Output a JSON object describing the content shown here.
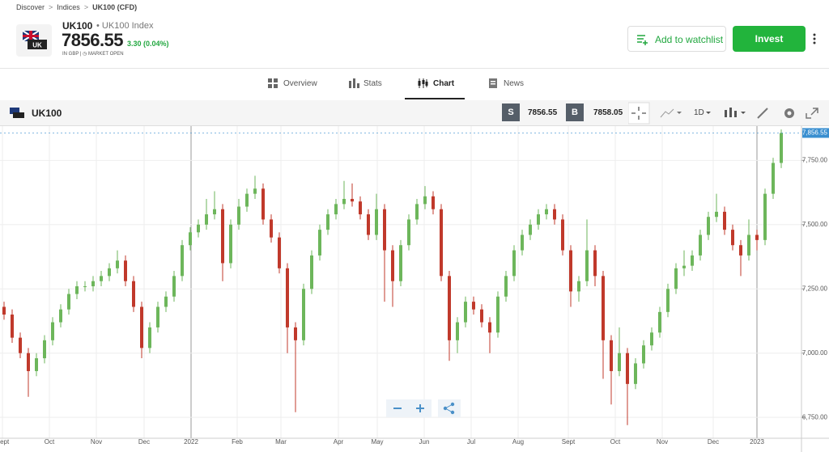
{
  "breadcrumb": [
    "Discover",
    "Indices",
    "UK100 (CFD)"
  ],
  "instrument": {
    "symbol": "UK100",
    "name": "UK100 Index",
    "badge": "UK",
    "price": "7856.55",
    "change": "3.30 (0.04%)",
    "currency": "IN GBP",
    "status": "MARKET OPEN"
  },
  "actions": {
    "watchlist": "Add to watchlist",
    "invest": "Invest"
  },
  "tabs": [
    "Overview",
    "Stats",
    "Chart",
    "News"
  ],
  "toolbar": {
    "symbol": "UK100",
    "sell_label": "S",
    "sell": "7856.55",
    "buy_label": "B",
    "buy": "7858.05",
    "interval": "1D"
  },
  "chart_data": {
    "type": "candlestick",
    "up_color": "#6db65b",
    "down_color": "#c0392b",
    "series": [
      {
        "values": [
          [
            7180,
            7200,
            7130,
            7150
          ],
          [
            7150,
            7170,
            7040,
            7060
          ],
          [
            7060,
            7080,
            6980,
            7000
          ],
          [
            7000,
            7020,
            6830,
            6930
          ],
          [
            6930,
            7000,
            6910,
            6980
          ],
          [
            6980,
            7070,
            6960,
            7050
          ],
          [
            7050,
            7140,
            7030,
            7120
          ],
          [
            7120,
            7190,
            7100,
            7170
          ],
          [
            7170,
            7250,
            7150,
            7230
          ],
          [
            7230,
            7280,
            7210,
            7260
          ],
          [
            7260,
            7280,
            7240,
            7260
          ],
          [
            7260,
            7300,
            7240,
            7280
          ],
          [
            7280,
            7320,
            7260,
            7300
          ],
          [
            7300,
            7350,
            7280,
            7330
          ],
          [
            7330,
            7400,
            7310,
            7360
          ],
          [
            7360,
            7380,
            7260,
            7280
          ],
          [
            7280,
            7300,
            7160,
            7180
          ],
          [
            7180,
            7200,
            6980,
            7020
          ],
          [
            7020,
            7120,
            7000,
            7100
          ],
          [
            7100,
            7200,
            7080,
            7180
          ],
          [
            7180,
            7240,
            7160,
            7220
          ],
          [
            7220,
            7320,
            7200,
            7300
          ],
          [
            7300,
            7440,
            7280,
            7420
          ],
          [
            7420,
            7490,
            7400,
            7470
          ],
          [
            7470,
            7520,
            7450,
            7500
          ],
          [
            7500,
            7600,
            7480,
            7540
          ],
          [
            7540,
            7630,
            7520,
            7560
          ],
          [
            7560,
            7580,
            7280,
            7350
          ],
          [
            7350,
            7520,
            7330,
            7500
          ],
          [
            7500,
            7600,
            7480,
            7570
          ],
          [
            7570,
            7640,
            7550,
            7620
          ],
          [
            7620,
            7690,
            7600,
            7640
          ],
          [
            7640,
            7660,
            7500,
            7520
          ],
          [
            7520,
            7540,
            7430,
            7450
          ],
          [
            7450,
            7470,
            7310,
            7330
          ],
          [
            7330,
            7350,
            7000,
            7100
          ],
          [
            7100,
            7120,
            6770,
            7050
          ],
          [
            7050,
            7270,
            7030,
            7250
          ],
          [
            7250,
            7400,
            7230,
            7380
          ],
          [
            7380,
            7500,
            7360,
            7480
          ],
          [
            7480,
            7560,
            7460,
            7540
          ],
          [
            7540,
            7600,
            7520,
            7580
          ],
          [
            7580,
            7670,
            7560,
            7600
          ],
          [
            7600,
            7660,
            7570,
            7590
          ],
          [
            7590,
            7610,
            7520,
            7540
          ],
          [
            7540,
            7560,
            7440,
            7460
          ],
          [
            7460,
            7620,
            7440,
            7560
          ],
          [
            7560,
            7580,
            7200,
            7400
          ],
          [
            7400,
            7420,
            7180,
            7280
          ],
          [
            7280,
            7440,
            7260,
            7420
          ],
          [
            7420,
            7540,
            7400,
            7520
          ],
          [
            7520,
            7600,
            7500,
            7580
          ],
          [
            7580,
            7650,
            7560,
            7610
          ],
          [
            7610,
            7630,
            7540,
            7560
          ],
          [
            7560,
            7580,
            7280,
            7300
          ],
          [
            7300,
            7320,
            6970,
            7050
          ],
          [
            7050,
            7140,
            7000,
            7120
          ],
          [
            7120,
            7220,
            7100,
            7200
          ],
          [
            7200,
            7220,
            7150,
            7170
          ],
          [
            7170,
            7190,
            7100,
            7120
          ],
          [
            7120,
            7140,
            7000,
            7080
          ],
          [
            7080,
            7240,
            7060,
            7220
          ],
          [
            7220,
            7320,
            7200,
            7300
          ],
          [
            7300,
            7420,
            7280,
            7400
          ],
          [
            7400,
            7480,
            7380,
            7460
          ],
          [
            7460,
            7520,
            7440,
            7500
          ],
          [
            7500,
            7560,
            7480,
            7540
          ],
          [
            7540,
            7580,
            7520,
            7560
          ],
          [
            7560,
            7580,
            7500,
            7520
          ],
          [
            7520,
            7540,
            7380,
            7400
          ],
          [
            7400,
            7420,
            7180,
            7240
          ],
          [
            7240,
            7300,
            7200,
            7280
          ],
          [
            7280,
            7520,
            7260,
            7400
          ],
          [
            7400,
            7420,
            7260,
            7300
          ],
          [
            7300,
            7320,
            6900,
            7050
          ],
          [
            7050,
            7070,
            6800,
            6930
          ],
          [
            6930,
            7100,
            6910,
            7000
          ],
          [
            7000,
            7020,
            6720,
            6880
          ],
          [
            6880,
            6980,
            6860,
            6960
          ],
          [
            6960,
            7050,
            6940,
            7030
          ],
          [
            7030,
            7100,
            7010,
            7080
          ],
          [
            7080,
            7180,
            7060,
            7160
          ],
          [
            7160,
            7270,
            7140,
            7250
          ],
          [
            7250,
            7350,
            7230,
            7330
          ],
          [
            7330,
            7400,
            7300,
            7340
          ],
          [
            7340,
            7400,
            7320,
            7380
          ],
          [
            7380,
            7480,
            7360,
            7460
          ],
          [
            7460,
            7550,
            7440,
            7530
          ],
          [
            7530,
            7620,
            7510,
            7550
          ],
          [
            7550,
            7570,
            7460,
            7480
          ],
          [
            7480,
            7500,
            7400,
            7420
          ],
          [
            7420,
            7440,
            7300,
            7380
          ],
          [
            7380,
            7520,
            7360,
            7460
          ],
          [
            7460,
            7480,
            7400,
            7440
          ],
          [
            7440,
            7640,
            7420,
            7620
          ],
          [
            7620,
            7760,
            7600,
            7740
          ],
          [
            7740,
            7870,
            7720,
            7856.55
          ]
        ]
      }
    ],
    "ylim": [
      6675,
      7880
    ],
    "yticks": [
      {
        "value": 6750,
        "label": "6,750.00"
      },
      {
        "value": 7000,
        "label": "7,000.00"
      },
      {
        "value": 7250,
        "label": "7,250.00"
      },
      {
        "value": 7500,
        "label": "7,500.00"
      },
      {
        "value": 7750,
        "label": "7,750.00"
      }
    ],
    "xticks": [
      {
        "value": -0.2,
        "label": "Sept"
      },
      {
        "value": 5.6,
        "label": "Oct"
      },
      {
        "value": 11.4,
        "label": "Nov"
      },
      {
        "value": 17.3,
        "label": "Dec"
      },
      {
        "value": 23.1,
        "label": "2022"
      },
      {
        "value": 28.8,
        "label": "Feb"
      },
      {
        "value": 34.2,
        "label": "Mar"
      },
      {
        "value": 41.3,
        "label": "Apr"
      },
      {
        "value": 46.1,
        "label": "May"
      },
      {
        "value": 51.9,
        "label": "Jun"
      },
      {
        "value": 57.7,
        "label": "Jul"
      },
      {
        "value": 63.5,
        "label": "Aug"
      },
      {
        "value": 69.7,
        "label": "Sept"
      },
      {
        "value": 75.5,
        "label": "Oct"
      },
      {
        "value": 81.3,
        "label": "Nov"
      },
      {
        "value": 87.6,
        "label": "Dec"
      },
      {
        "value": 93,
        "label": "2023"
      }
    ],
    "year_ticks": [
      4,
      16
    ],
    "last_price": {
      "value": 7856.55,
      "label": "7,856.55"
    },
    "grid": true
  }
}
